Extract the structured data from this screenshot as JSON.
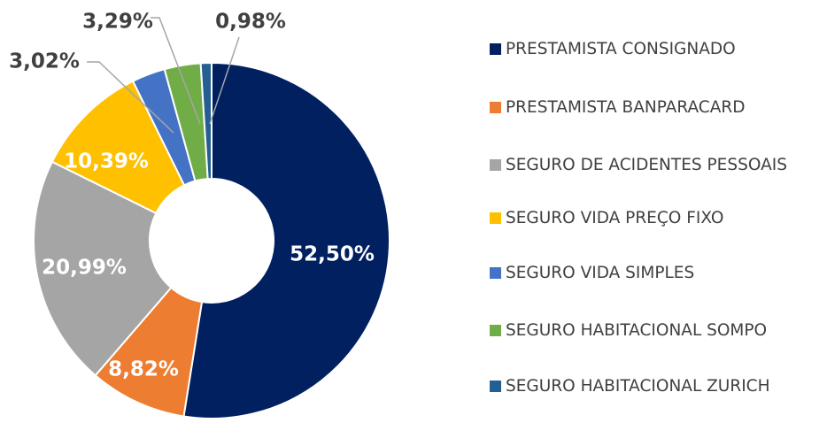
{
  "chart_data": {
    "type": "doughnut",
    "categories": [
      "PRESTAMISTA CONSIGNADO",
      "PRESTAMISTA BANPARACARD",
      "SEGURO DE ACIDENTES PESSOAIS",
      "SEGURO VIDA PREÇO FIXO",
      "SEGURO VIDA SIMPLES",
      "SEGURO HABITACIONAL SOMPO",
      "SEGURO HABITACIONAL ZURICH"
    ],
    "values": [
      52.5,
      8.82,
      20.99,
      10.39,
      3.02,
      3.29,
      0.98
    ],
    "value_labels": [
      "52,50%",
      "8,82%",
      "20,99%",
      "10,39%",
      "3,02%",
      "3,29%",
      "0,98%"
    ],
    "colors": [
      "#002060",
      "#ED7D31",
      "#A5A5A5",
      "#FFC000",
      "#4472C4",
      "#70AD47",
      "#255E91"
    ],
    "legend": "right"
  }
}
